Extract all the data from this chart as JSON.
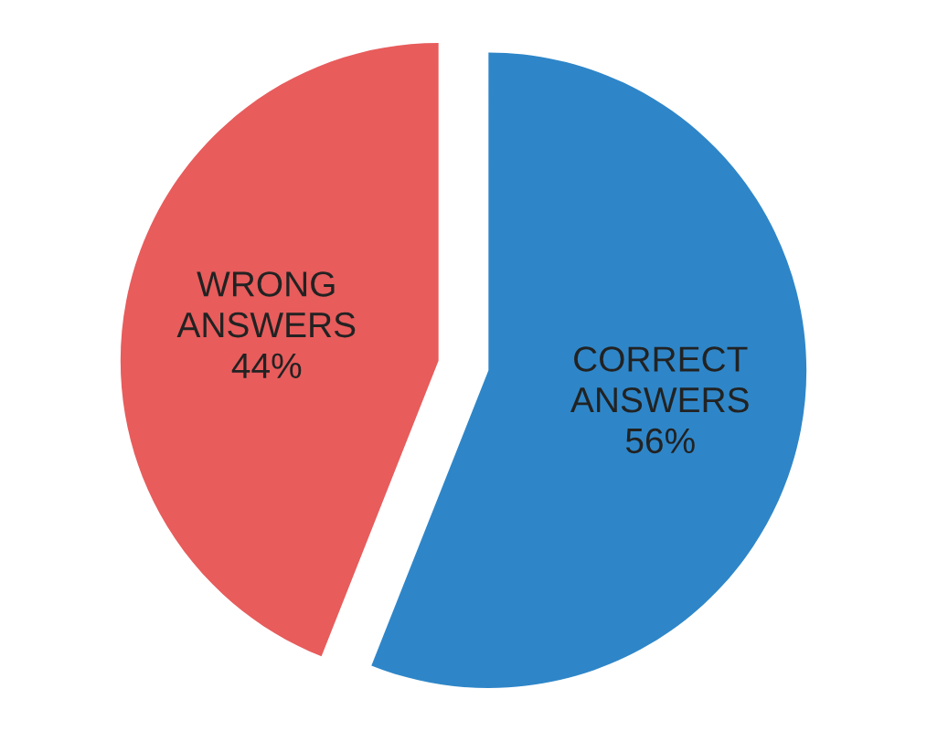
{
  "chart_data": {
    "type": "pie",
    "categories": [
      "WRONG\nANSWERS",
      "CORRECT\nANSWERS"
    ],
    "values": [
      44,
      56
    ],
    "value_labels": [
      "44%",
      "56%"
    ],
    "colors": [
      "#e85c5c",
      "#2e86c8"
    ]
  }
}
